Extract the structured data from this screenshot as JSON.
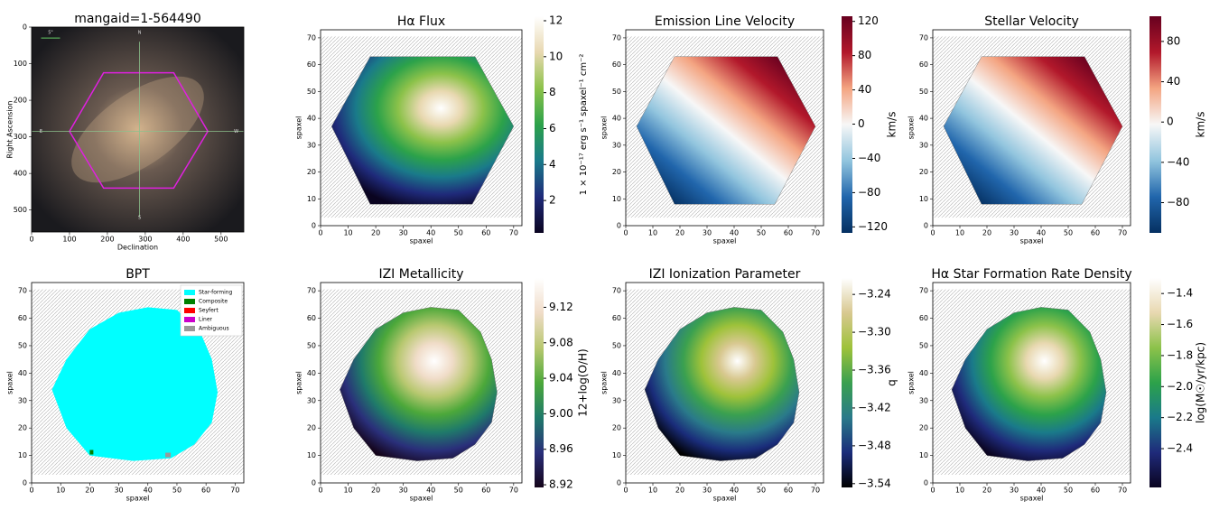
{
  "chart_data": [
    {
      "type": "image",
      "title": "mangaid=1-564490",
      "xlabel": "Declination",
      "ylabel": "Right Ascension",
      "xlim": [
        0,
        560
      ],
      "ylim": [
        560,
        0
      ],
      "xticks": [
        0,
        100,
        200,
        300,
        400,
        500
      ],
      "yticks": [
        0,
        100,
        200,
        300,
        400,
        500
      ],
      "annotations": [
        "5\"",
        "N",
        "E",
        "W",
        "S"
      ]
    },
    {
      "type": "heatmap",
      "title": "Hα Flux",
      "xlabel": "spaxel",
      "ylabel": "spaxel",
      "xlim": [
        0,
        73
      ],
      "ylim": [
        0,
        73
      ],
      "xticks": [
        0,
        10,
        20,
        30,
        40,
        50,
        60,
        70
      ],
      "yticks": [
        0,
        10,
        20,
        30,
        40,
        50,
        60,
        70
      ],
      "colorbar": {
        "label": "1 × 10⁻¹⁷ erg s⁻¹ spaxel⁻¹ cm⁻²",
        "lim": [
          0.2,
          12.25
        ],
        "ticks": [
          2,
          4,
          6,
          8,
          10,
          12
        ],
        "colormap": [
          "#0a0420",
          "#1f2a7a",
          "#1a7a8a",
          "#2ca24a",
          "#8cc24a",
          "#e8d8b0",
          "#ffffff"
        ]
      }
    },
    {
      "type": "heatmap",
      "title": "Emission Line Velocity",
      "xlabel": "spaxel",
      "ylabel": "spaxel",
      "xlim": [
        0,
        73
      ],
      "ylim": [
        0,
        73
      ],
      "xticks": [
        0,
        10,
        20,
        30,
        40,
        50,
        60,
        70
      ],
      "yticks": [
        0,
        10,
        20,
        30,
        40,
        50,
        60,
        70
      ],
      "colorbar": {
        "label": "km/s",
        "lim": [
          -127,
          126
        ],
        "ticks": [
          {
            "value": -120,
            "label": "−120"
          },
          {
            "value": -80,
            "label": "−80"
          },
          {
            "value": -40,
            "label": "−40"
          },
          0,
          40,
          80,
          120
        ],
        "colormap": [
          "#053061",
          "#2166ac",
          "#92c5de",
          "#f7f7f7",
          "#f4a582",
          "#b2182b",
          "#67001f"
        ]
      }
    },
    {
      "type": "heatmap",
      "title": "Stellar Velocity",
      "xlabel": "spaxel",
      "ylabel": "spaxel",
      "xlim": [
        0,
        73
      ],
      "ylim": [
        0,
        73
      ],
      "xticks": [
        0,
        10,
        20,
        30,
        40,
        50,
        60,
        70
      ],
      "yticks": [
        0,
        10,
        20,
        30,
        40,
        50,
        60,
        70
      ],
      "colorbar": {
        "label": "km/s",
        "lim": [
          -110,
          105
        ],
        "ticks": [
          {
            "value": -80,
            "label": "−80"
          },
          {
            "value": -40,
            "label": "−40"
          },
          0,
          40,
          80
        ],
        "colormap": [
          "#053061",
          "#2166ac",
          "#92c5de",
          "#f7f7f7",
          "#f4a582",
          "#b2182b",
          "#67001f"
        ]
      }
    },
    {
      "type": "categorical",
      "title": "BPT",
      "xlabel": "spaxel",
      "ylabel": "spaxel",
      "xlim": [
        0,
        73
      ],
      "ylim": [
        0,
        73
      ],
      "xticks": [
        0,
        10,
        20,
        30,
        40,
        50,
        60,
        70
      ],
      "yticks": [
        0,
        10,
        20,
        30,
        40,
        50,
        60,
        70
      ],
      "legend": "upper right",
      "series": [
        {
          "name": "Star-forming",
          "color": "#00ffff"
        },
        {
          "name": "Composite",
          "color": "#008000"
        },
        {
          "name": "Seyfert",
          "color": "#ff0000"
        },
        {
          "name": "Liner",
          "color": "#cc00cc"
        },
        {
          "name": "Ambiguous",
          "color": "#999999"
        }
      ]
    },
    {
      "type": "heatmap",
      "title": "IZI Metallicity",
      "xlabel": "spaxel",
      "ylabel": "spaxel",
      "xlim": [
        0,
        73
      ],
      "ylim": [
        0,
        73
      ],
      "xticks": [
        0,
        10,
        20,
        30,
        40,
        50,
        60,
        70
      ],
      "yticks": [
        0,
        10,
        20,
        30,
        40,
        50,
        60,
        70
      ],
      "colorbar": {
        "label": "12+log(O/H)",
        "lim": [
          8.917,
          9.153
        ],
        "ticks": [
          8.92,
          8.96,
          {
            "value": 9,
            "label": "9.00"
          },
          9.04,
          9.08,
          9.12
        ],
        "colormap": [
          "#14041a",
          "#2a2f7a",
          "#1f7a6a",
          "#4ca83a",
          "#b8c870",
          "#f0dcc8",
          "#ffffff"
        ]
      }
    },
    {
      "type": "heatmap",
      "title": "IZI Ionization Parameter",
      "xlabel": "spaxel",
      "ylabel": "spaxel",
      "xlim": [
        0,
        73
      ],
      "ylim": [
        0,
        73
      ],
      "xticks": [
        0,
        10,
        20,
        30,
        40,
        50,
        60,
        70
      ],
      "yticks": [
        0,
        10,
        20,
        30,
        40,
        50,
        60,
        70
      ],
      "colorbar": {
        "label": "q",
        "lim": [
          -3.546,
          -3.214
        ],
        "ticks": [
          {
            "value": -3.54,
            "label": "−3.54"
          },
          {
            "value": -3.48,
            "label": "−3.48"
          },
          {
            "value": -3.42,
            "label": "−3.42"
          },
          {
            "value": -3.36,
            "label": "−3.36"
          },
          {
            "value": -3.3,
            "label": "−3.30"
          },
          {
            "value": -3.24,
            "label": "−3.24"
          }
        ],
        "colormap": [
          "#000000",
          "#1a2c7a",
          "#2a7a8a",
          "#3aa050",
          "#9ec23a",
          "#d8c890",
          "#ffffff"
        ]
      }
    },
    {
      "type": "heatmap",
      "title": "Hα Star Formation Rate Density",
      "xlabel": "spaxel",
      "ylabel": "spaxel",
      "xlim": [
        0,
        73
      ],
      "ylim": [
        0,
        73
      ],
      "xticks": [
        0,
        10,
        20,
        30,
        40,
        50,
        60,
        70
      ],
      "yticks": [
        0,
        10,
        20,
        30,
        40,
        50,
        60,
        70
      ],
      "colorbar": {
        "label": "log(M☉/yr/kpc)",
        "lim": [
          -2.65,
          -1.3
        ],
        "ticks": [
          {
            "value": -2.4,
            "label": "−2.4"
          },
          {
            "value": -2.2,
            "label": "−2.2"
          },
          {
            "value": -2,
            "label": "−2.0"
          },
          {
            "value": -1.8,
            "label": "−1.8"
          },
          {
            "value": -1.6,
            "label": "−1.6"
          },
          {
            "value": -1.4,
            "label": "−1.4"
          }
        ],
        "colormap": [
          "#0a0420",
          "#1f2a7a",
          "#1a7a8a",
          "#2ca24a",
          "#8cc24a",
          "#e8d8b0",
          "#ffffff"
        ]
      }
    }
  ]
}
